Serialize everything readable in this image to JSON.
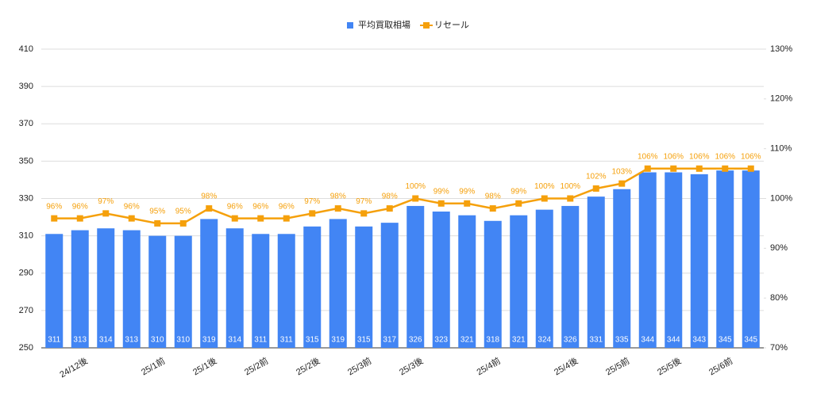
{
  "chart_data": {
    "type": "bar_line",
    "categories": [
      null,
      "24/12後",
      null,
      null,
      "25/1前",
      null,
      "25/1後",
      null,
      "25/2前",
      null,
      "25/2後",
      null,
      "25/3前",
      null,
      "25/3後",
      null,
      null,
      "25/4前",
      null,
      null,
      "25/4後",
      null,
      "25/5前",
      null,
      "25/5後",
      null,
      "25/6前",
      null
    ],
    "series": [
      {
        "name": "平均買取相場",
        "color": "#4285f4",
        "type": "bar",
        "values": [
          311,
          313,
          314,
          313,
          310,
          310,
          319,
          314,
          311,
          311,
          315,
          319,
          315,
          317,
          326,
          323,
          321,
          318,
          321,
          324,
          326,
          331,
          335,
          344,
          344,
          343,
          345,
          345
        ]
      },
      {
        "name": "リセール",
        "color": "#f5a00b",
        "type": "line",
        "axis": "y2",
        "values": [
          96,
          96,
          97,
          96,
          95,
          95,
          98,
          96,
          96,
          96,
          97,
          98,
          97,
          98,
          100,
          99,
          99,
          98,
          99,
          100,
          100,
          102,
          103,
          106,
          106,
          106,
          106,
          106
        ],
        "value_labels": [
          "96%",
          "96%",
          "97%",
          "96%",
          "95%",
          "95%",
          "98%",
          "96%",
          "96%",
          "96%",
          "97%",
          "98%",
          "97%",
          "98%",
          "100%",
          "99%",
          "99%",
          "98%",
          "99%",
          "100%",
          "100%",
          "102%",
          "103%",
          "106%",
          "106%",
          "106%",
          "106%",
          "106%"
        ]
      }
    ],
    "ylim": [
      250,
      410
    ],
    "yticks": [
      250,
      270,
      290,
      310,
      330,
      350,
      370,
      390,
      410
    ],
    "y2lim": [
      70,
      130
    ],
    "y2ticks": [
      {
        "value": 70,
        "label": "70%"
      },
      {
        "value": 80,
        "label": "80%"
      },
      {
        "value": 90,
        "label": "90%"
      },
      {
        "value": 100,
        "label": "100%"
      },
      {
        "value": 110,
        "label": "110%"
      },
      {
        "value": 120,
        "label": "120%"
      },
      {
        "value": 130,
        "label": "130%"
      }
    ],
    "grid": true,
    "legend": "top"
  }
}
